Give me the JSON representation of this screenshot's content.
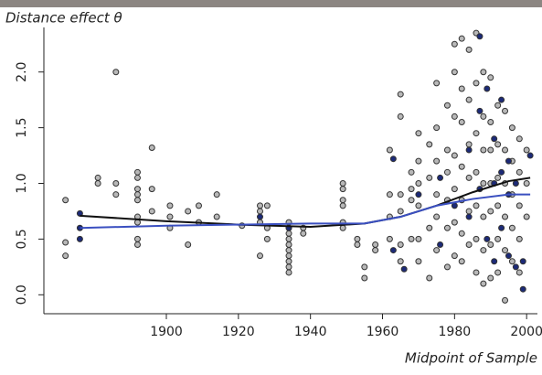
{
  "chart_data": {
    "type": "scatter",
    "y_title": "Distance effect θ",
    "x_title": "Midpoint of Sample",
    "xlim": [
      1866,
      2003
    ],
    "ylim": [
      -0.17,
      2.4
    ],
    "xticks": [
      1900,
      1920,
      1940,
      1960,
      1980,
      2000
    ],
    "yticks": [
      {
        "value": 0,
        "label": "0.0"
      },
      {
        "value": 0.5,
        "label": "0.5"
      },
      {
        "value": 1,
        "label": "1.0"
      },
      {
        "value": 1.5,
        "label": "1.5"
      },
      {
        "value": 2,
        "label": "2.0"
      }
    ],
    "series": [
      {
        "color": "#b8b8b8",
        "x": [
          1872,
          1872,
          1872,
          1881,
          1881,
          1886,
          1886,
          1886,
          1892,
          1892,
          1892,
          1892,
          1892,
          1892,
          1892,
          1892,
          1892,
          1896,
          1896,
          1896,
          1901,
          1901,
          1901,
          1906,
          1906,
          1909,
          1909,
          1914,
          1914,
          1921,
          1926,
          1926,
          1926,
          1926,
          1928,
          1928,
          1928,
          1934,
          1934,
          1934,
          1934,
          1934,
          1934,
          1934,
          1934,
          1934,
          1934,
          1938,
          1938,
          1949,
          1949,
          1949,
          1949,
          1949,
          1949,
          1953,
          1953,
          1955,
          1955,
          1958,
          1958,
          1962,
          1962,
          1962,
          1962,
          1965,
          1965,
          1965,
          1965,
          1965,
          1965,
          1968,
          1968,
          1968,
          1968,
          1970,
          1970,
          1970,
          1970,
          1970,
          1970,
          1973,
          1973,
          1973,
          1973,
          1975,
          1975,
          1975,
          1975,
          1975,
          1975,
          1978,
          1978,
          1978,
          1978,
          1978,
          1978,
          1980,
          1980,
          1980,
          1980,
          1980,
          1980,
          1980,
          1982,
          1982,
          1982,
          1982,
          1982,
          1982,
          1982,
          1984,
          1984,
          1984,
          1984,
          1984,
          1984,
          1986,
          1986,
          1986,
          1986,
          1986,
          1986,
          1986,
          1988,
          1988,
          1988,
          1988,
          1988,
          1988,
          1988,
          1990,
          1990,
          1990,
          1990,
          1990,
          1990,
          1990,
          1992,
          1992,
          1992,
          1992,
          1992,
          1992,
          1994,
          1994,
          1994,
          1994,
          1994,
          1994,
          1996,
          1996,
          1996,
          1996,
          1996,
          1998,
          1998,
          1998,
          1998,
          1998,
          2000,
          2000,
          2000
        ],
        "values": [
          0.85,
          0.47,
          0.35,
          1.05,
          1.0,
          2.0,
          1.0,
          0.9,
          1.1,
          1.05,
          0.95,
          0.9,
          0.85,
          0.7,
          0.65,
          0.5,
          0.45,
          1.32,
          0.95,
          0.75,
          0.8,
          0.7,
          0.6,
          0.75,
          0.45,
          0.8,
          0.65,
          0.9,
          0.7,
          0.62,
          0.8,
          0.75,
          0.65,
          0.35,
          0.8,
          0.6,
          0.5,
          0.65,
          0.6,
          0.55,
          0.5,
          0.45,
          0.4,
          0.35,
          0.3,
          0.25,
          0.2,
          0.6,
          0.55,
          1.0,
          0.95,
          0.85,
          0.8,
          0.65,
          0.6,
          0.5,
          0.45,
          0.25,
          0.15,
          0.45,
          0.4,
          1.3,
          0.9,
          0.7,
          0.5,
          1.8,
          1.6,
          0.9,
          0.75,
          0.45,
          0.3,
          1.1,
          0.95,
          0.85,
          0.5,
          1.45,
          1.2,
          1.0,
          0.8,
          0.5,
          0.3,
          1.35,
          1.05,
          0.6,
          0.15,
          1.9,
          1.5,
          1.2,
          0.9,
          0.7,
          0.4,
          1.7,
          1.3,
          1.1,
          0.85,
          0.6,
          0.25,
          2.25,
          2.0,
          1.6,
          1.25,
          0.95,
          0.65,
          0.35,
          2.3,
          1.85,
          1.55,
          1.15,
          0.85,
          0.55,
          0.3,
          2.2,
          1.75,
          1.35,
          1.05,
          0.75,
          0.45,
          2.35,
          1.9,
          1.45,
          1.1,
          0.8,
          0.5,
          0.2,
          2.0,
          1.6,
          1.3,
          1.0,
          0.7,
          0.4,
          0.1,
          1.95,
          1.55,
          1.3,
          1.0,
          0.75,
          0.45,
          0.15,
          1.7,
          1.35,
          1.05,
          0.8,
          0.5,
          0.2,
          1.65,
          1.3,
          1.0,
          0.7,
          0.4,
          -0.05,
          1.5,
          1.2,
          0.9,
          0.6,
          0.3,
          1.4,
          1.1,
          0.8,
          0.5,
          0.2,
          1.3,
          1.0,
          0.7
        ]
      },
      {
        "color": "#1c2a78",
        "x": [
          1876,
          1876,
          1876,
          1926,
          1934,
          1963,
          1963,
          1966,
          1970,
          1976,
          1976,
          1980,
          1984,
          1984,
          1987,
          1987,
          1987,
          1989,
          1989,
          1991,
          1991,
          1991,
          1993,
          1993,
          1993,
          1995,
          1995,
          1995,
          1997,
          1997,
          1999,
          1999,
          2001
        ],
        "values": [
          0.73,
          0.6,
          0.5,
          0.7,
          0.6,
          1.22,
          0.4,
          0.23,
          0.9,
          1.05,
          0.45,
          0.8,
          1.3,
          0.7,
          2.32,
          1.65,
          0.95,
          1.85,
          0.5,
          1.4,
          1.0,
          0.3,
          1.75,
          1.1,
          0.6,
          1.2,
          0.9,
          0.35,
          1.0,
          0.25,
          0.05,
          0.3,
          1.25
        ]
      }
    ],
    "lines": [
      {
        "color": "#111111",
        "x": [
          1876,
          1900,
          1920,
          1940,
          1955,
          1965,
          1975,
          1985,
          1995,
          2001
        ],
        "values": [
          0.71,
          0.66,
          0.63,
          0.61,
          0.64,
          0.7,
          0.8,
          0.92,
          1.02,
          1.05
        ]
      },
      {
        "color": "#3a4fc0",
        "x": [
          1876,
          1900,
          1920,
          1940,
          1955,
          1965,
          1975,
          1985,
          1995,
          2001
        ],
        "values": [
          0.6,
          0.62,
          0.63,
          0.64,
          0.64,
          0.7,
          0.8,
          0.86,
          0.9,
          0.9
        ]
      }
    ]
  }
}
